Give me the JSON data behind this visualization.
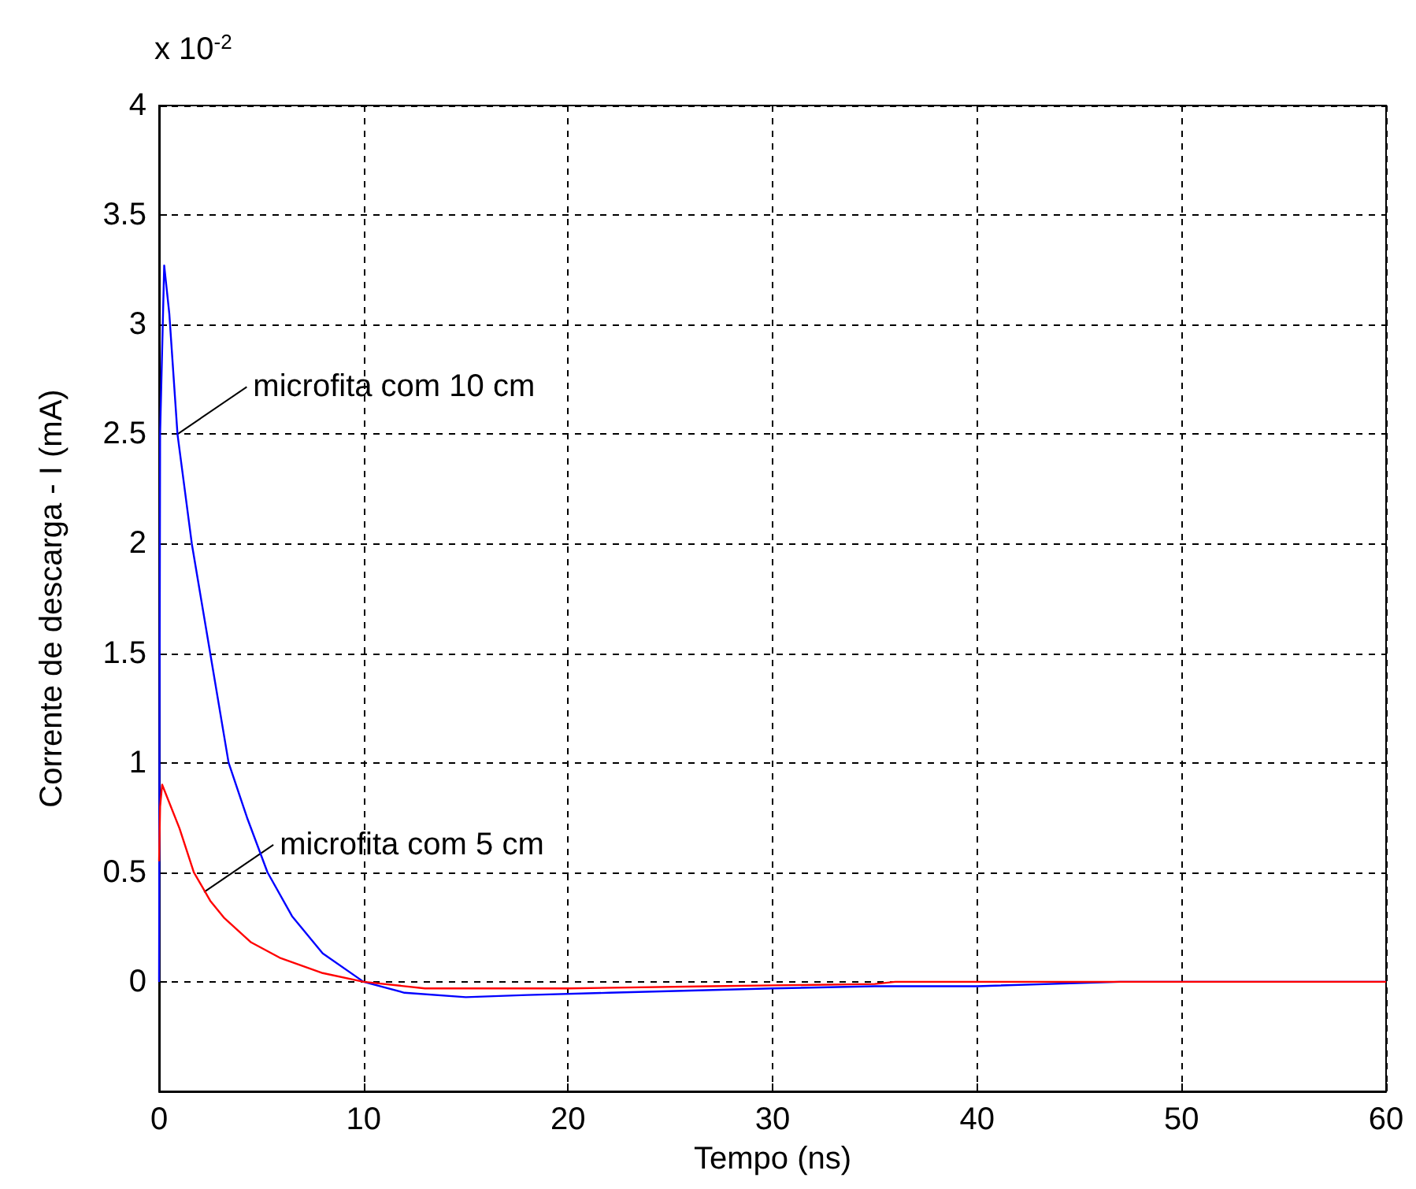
{
  "chart_data": {
    "type": "line",
    "xlabel": "Tempo (ns)",
    "ylabel": "Corrente de descarga - I (mA)",
    "xlim": [
      0,
      60
    ],
    "xticks": [
      0,
      10,
      20,
      30,
      40,
      50,
      60
    ],
    "ylim": [
      -0.5,
      4
    ],
    "yticks": [
      0,
      0.5,
      1,
      1.5,
      2,
      2.5,
      3,
      3.5,
      4
    ],
    "grid": true,
    "marker": "none",
    "line_style": "solid",
    "series": [
      {
        "color": "#0000ff",
        "x": [
          0,
          0.05,
          0.25,
          0.5,
          0.9,
          1.6,
          2.5,
          3.4,
          4.3,
          5.3,
          6.5,
          8,
          10,
          12,
          15,
          18,
          22,
          26,
          30,
          35,
          40,
          47,
          50,
          60
        ],
        "values": [
          0,
          2.5,
          3.27,
          3.05,
          2.5,
          2,
          1.5,
          1,
          0.75,
          0.5,
          0.3,
          0.13,
          0,
          -0.05,
          -0.07,
          -0.06,
          -0.05,
          -0.04,
          -0.03,
          -0.02,
          -0.02,
          0,
          0,
          0
        ]
      },
      {
        "color": "#ff0000",
        "x": [
          0,
          0.05,
          0.15,
          1,
          1.7,
          2.5,
          3.2,
          4.5,
          5.9,
          8,
          10,
          13,
          20,
          27,
          35,
          36,
          50,
          60
        ],
        "values": [
          0.55,
          0.8,
          0.9,
          0.7,
          0.5,
          0.37,
          0.29,
          0.18,
          0.11,
          0.04,
          0,
          -0.03,
          -0.03,
          -0.02,
          -0.01,
          0,
          0,
          0
        ]
      }
    ],
    "annotations": [
      "x 10$^{-2}$",
      {
        "text": "microfita com 10 cm",
        "x": 0.9,
        "y": 2.5
      },
      {
        "text": "microfita com 5 cm",
        "x": 2.2,
        "y": 0.41
      }
    ]
  }
}
